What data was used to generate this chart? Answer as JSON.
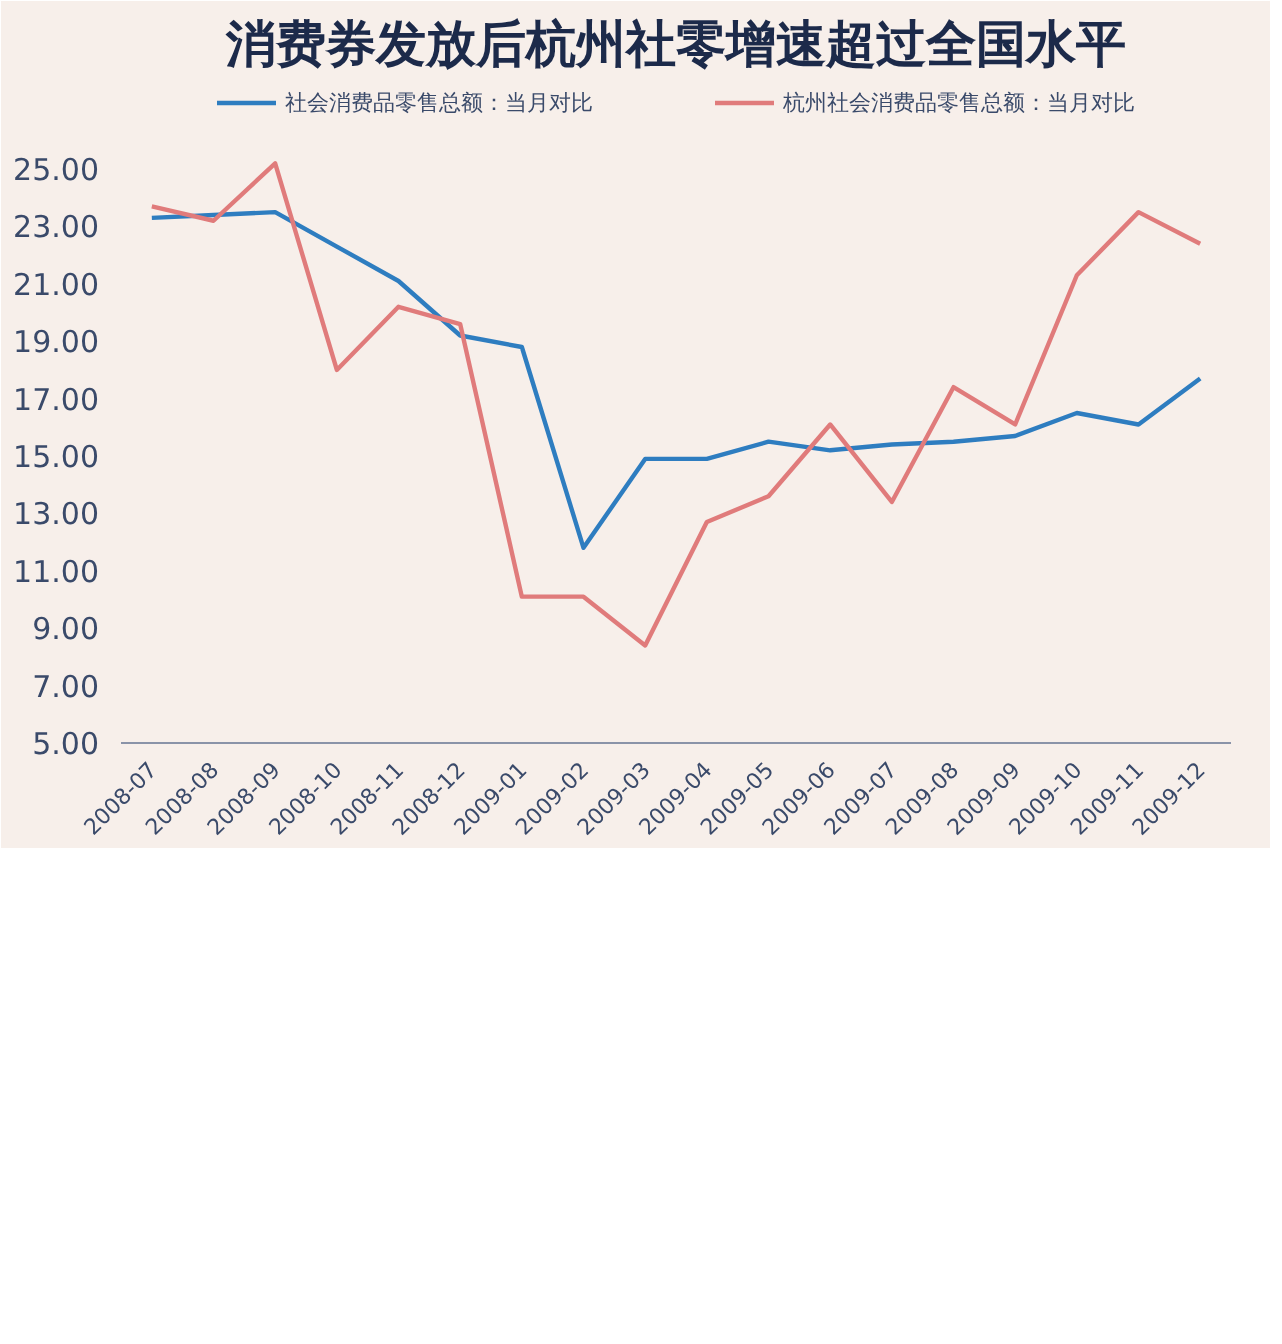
{
  "chart_data": {
    "type": "line",
    "title": "消费券发放后杭州社零增速超过全国水平",
    "categories": [
      "2008-07",
      "2008-08",
      "2008-09",
      "2008-10",
      "2008-11",
      "2008-12",
      "2009-01",
      "2009-02",
      "2009-03",
      "2009-04",
      "2009-05",
      "2009-06",
      "2009-07",
      "2009-08",
      "2009-09",
      "2009-10",
      "2009-11",
      "2009-12"
    ],
    "series": [
      {
        "name": "社会消费品零售总额：当月对比",
        "color": "#2e7dc0",
        "values": [
          23.3,
          23.4,
          23.5,
          22.3,
          21.1,
          19.2,
          18.8,
          11.8,
          14.9,
          14.9,
          15.5,
          15.2,
          15.4,
          15.5,
          15.7,
          16.5,
          16.1,
          17.7
        ]
      },
      {
        "name": "杭州社会消费品零售总额：当月对比",
        "color": "#e07b7b",
        "values": [
          23.7,
          23.2,
          25.2,
          18.0,
          20.2,
          19.6,
          10.1,
          10.1,
          8.4,
          12.7,
          13.6,
          16.1,
          13.4,
          17.4,
          16.1,
          21.3,
          23.5,
          22.4
        ]
      }
    ],
    "ylim": [
      5,
      28
    ],
    "yticks": [
      {
        "value": 5,
        "label": "5.00"
      },
      {
        "value": 7,
        "label": "7.00"
      },
      {
        "value": 9,
        "label": "9.00"
      },
      {
        "value": 11,
        "label": "11.00"
      },
      {
        "value": 13,
        "label": "13.00"
      },
      {
        "value": 15,
        "label": "15.00"
      },
      {
        "value": 17,
        "label": "17.00"
      },
      {
        "value": 19,
        "label": "19.00"
      },
      {
        "value": 21,
        "label": "21.00"
      },
      {
        "value": 23,
        "label": "23.00"
      },
      {
        "value": 25,
        "label": "25.00"
      }
    ],
    "grid": false,
    "legend": "top",
    "marker": "none",
    "line_style": "solid"
  }
}
